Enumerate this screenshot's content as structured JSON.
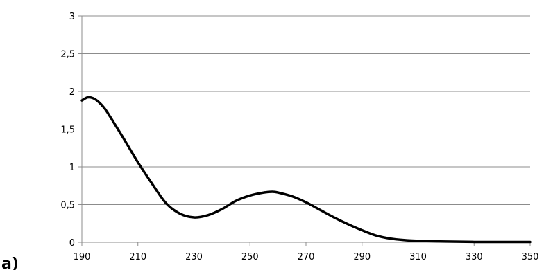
{
  "panel_label": "a)",
  "chart_data": {
    "type": "line",
    "title": "",
    "xlabel": "",
    "ylabel": "",
    "xlim": [
      190,
      350
    ],
    "ylim": [
      0,
      3
    ],
    "grid": "horizontal",
    "legend": "none",
    "x_ticks": [
      "190",
      "210",
      "230",
      "250",
      "270",
      "290",
      "310",
      "330",
      "350"
    ],
    "y_ticks": [
      "0",
      "0,5",
      "1",
      "1,5",
      "2",
      "2,5",
      "3"
    ],
    "series": [
      {
        "color": "#000000",
        "x": [
          190,
          192,
          194,
          196,
          198,
          200,
          205,
          210,
          215,
          220,
          225,
          230,
          235,
          240,
          245,
          250,
          255,
          258,
          260,
          265,
          270,
          275,
          280,
          285,
          290,
          295,
          300,
          305,
          310,
          320,
          330,
          340,
          350
        ],
        "y": [
          1.88,
          1.92,
          1.91,
          1.86,
          1.78,
          1.67,
          1.37,
          1.06,
          0.78,
          0.52,
          0.38,
          0.33,
          0.36,
          0.44,
          0.55,
          0.62,
          0.66,
          0.67,
          0.66,
          0.61,
          0.53,
          0.43,
          0.33,
          0.24,
          0.16,
          0.09,
          0.05,
          0.03,
          0.02,
          0.01,
          0.005,
          0.005,
          0.005
        ]
      }
    ]
  }
}
